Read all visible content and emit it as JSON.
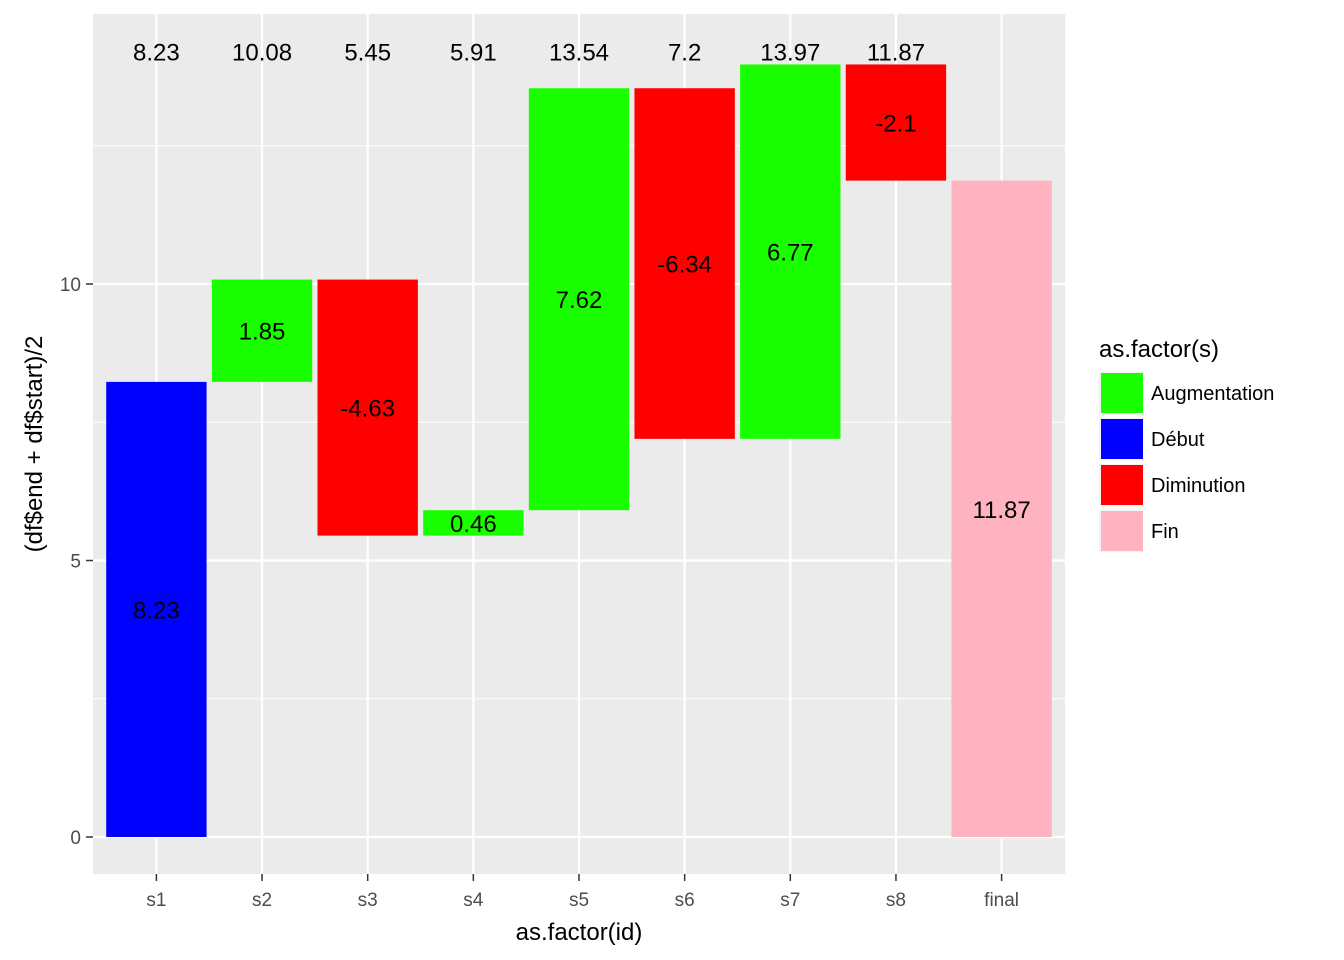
{
  "chart_data": {
    "type": "bar",
    "subtype": "waterfall",
    "xlabel": "as.factor(id)",
    "ylabel": "(df$end + df$start)/2",
    "ylim": [
      -0.65,
      14.8
    ],
    "y_ticks": [
      0,
      5,
      10
    ],
    "y_tick_labels": [
      "0",
      "5",
      "10"
    ],
    "grid": true,
    "legend_position": "right",
    "legend": {
      "title": "as.factor(s)",
      "items": [
        {
          "label": "Augmentation",
          "color": "#1aff00"
        },
        {
          "label": "Début",
          "color": "#0000ff"
        },
        {
          "label": "Diminution",
          "color": "#ff0000"
        },
        {
          "label": "Fin",
          "color": "#ffb3c1"
        }
      ]
    },
    "categories": [
      "s1",
      "s2",
      "s3",
      "s4",
      "s5",
      "s6",
      "s7",
      "s8",
      "final"
    ],
    "bars": [
      {
        "id": "s1",
        "start": 0,
        "end": 8.23,
        "amount": "8.23",
        "type": "Début",
        "cumulative": "8.23"
      },
      {
        "id": "s2",
        "start": 8.23,
        "end": 10.08,
        "amount": "1.85",
        "type": "Augmentation",
        "cumulative": "10.08"
      },
      {
        "id": "s3",
        "start": 10.08,
        "end": 5.45,
        "amount": "-4.63",
        "type": "Diminution",
        "cumulative": "5.45"
      },
      {
        "id": "s4",
        "start": 5.45,
        "end": 5.91,
        "amount": "0.46",
        "type": "Augmentation",
        "cumulative": "5.91"
      },
      {
        "id": "s5",
        "start": 5.91,
        "end": 13.54,
        "amount": "7.62",
        "type": "Augmentation",
        "cumulative": "13.54"
      },
      {
        "id": "s6",
        "start": 13.54,
        "end": 7.2,
        "amount": "-6.34",
        "type": "Diminution",
        "cumulative": "7.2"
      },
      {
        "id": "s7",
        "start": 7.2,
        "end": 13.97,
        "amount": "6.77",
        "type": "Augmentation",
        "cumulative": "13.97"
      },
      {
        "id": "s8",
        "start": 13.97,
        "end": 11.87,
        "amount": "-2.1",
        "type": "Diminution",
        "cumulative": "11.87"
      },
      {
        "id": "final",
        "start": 0,
        "end": 11.87,
        "amount": "11.87",
        "type": "Fin",
        "cumulative": ""
      }
    ],
    "top_label_y": 14.2,
    "colors": {
      "panel_background": "#ebebeb",
      "grid_line": "#ffffff"
    }
  }
}
